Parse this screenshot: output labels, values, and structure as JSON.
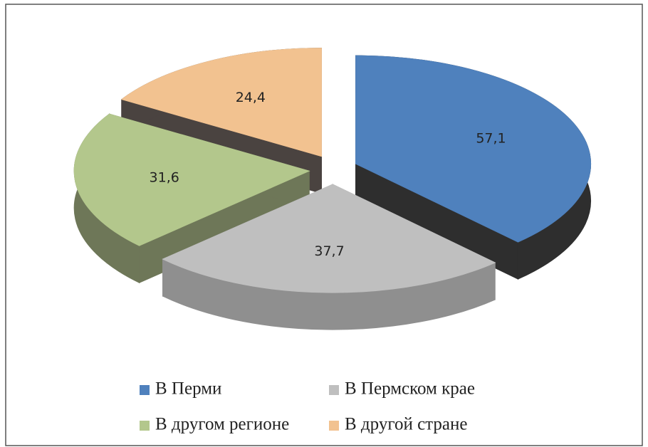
{
  "chart_data": {
    "type": "pie",
    "categories": [
      "В Перми",
      "В Пермском крае",
      "В другом регионе",
      "В другой стране"
    ],
    "values": [
      57.1,
      37.7,
      31.6,
      24.4
    ],
    "value_labels": [
      "57,1",
      "37,7",
      "31,6",
      "24,4"
    ],
    "colors": [
      "#4f81bd",
      "#bfbfbf",
      "#b3c78c",
      "#f2c290"
    ],
    "side_colors": [
      "#2e2e2e",
      "#8f8f8f",
      "#6e7758",
      "#4a4340"
    ],
    "legend": "bottom"
  }
}
